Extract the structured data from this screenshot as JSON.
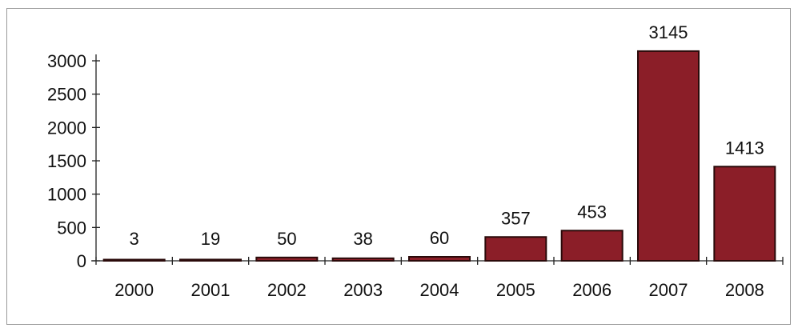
{
  "chart_data": {
    "type": "bar",
    "title": "",
    "xlabel": "",
    "ylabel": "",
    "categories": [
      "2000",
      "2001",
      "2002",
      "2003",
      "2004",
      "2005",
      "2006",
      "2007",
      "2008"
    ],
    "values": [
      3,
      19,
      50,
      38,
      60,
      357,
      453,
      3145,
      1413
    ],
    "value_labels": [
      "3",
      "19",
      "50",
      "38",
      "60",
      "357",
      "453",
      "3145",
      "1413"
    ],
    "ylim": [
      0,
      3000
    ],
    "yticks": [
      0,
      500,
      1000,
      1500,
      2000,
      2500,
      3000
    ],
    "ytick_labels": [
      "0",
      "500",
      "1000",
      "1500",
      "2000",
      "2500",
      "3000"
    ],
    "grid": false,
    "legend": "none",
    "colors": {
      "bar": "#8b1e28"
    }
  }
}
